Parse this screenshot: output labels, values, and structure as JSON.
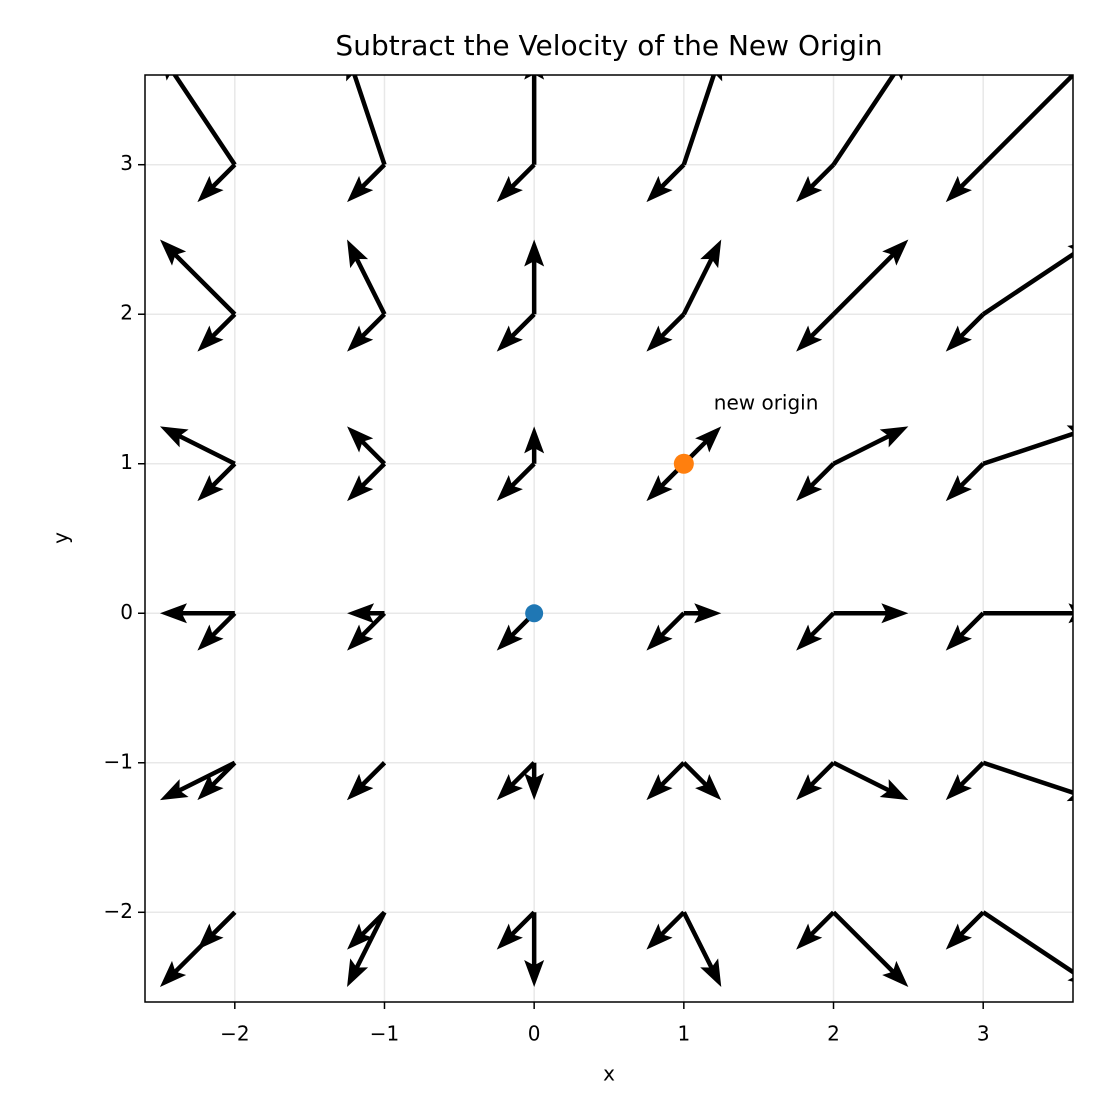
{
  "chart_data": {
    "type": "quiver",
    "title": "Subtract the Velocity of the New Origin",
    "x_label": "x",
    "y_label": "y",
    "xlim": [
      -2.6,
      3.6
    ],
    "ylim": [
      -2.6,
      3.6
    ],
    "xticks": [
      {
        "value": -2,
        "label": "−2"
      },
      {
        "value": -1,
        "label": "−1"
      },
      0,
      1,
      2,
      3
    ],
    "yticks": [
      {
        "value": -2,
        "label": "−2"
      },
      {
        "value": -1,
        "label": "−1"
      },
      0,
      1,
      2,
      3
    ],
    "grid": true,
    "color": "#000000",
    "x": [
      -2,
      -1,
      0,
      1,
      2,
      3,
      -2,
      -1,
      0,
      1,
      2,
      3,
      -2,
      -1,
      0,
      1,
      2,
      3,
      -2,
      -1,
      0,
      1,
      2,
      3,
      -2,
      -1,
      0,
      1,
      2,
      3,
      -2,
      -1,
      0,
      1,
      2,
      3
    ],
    "y": [
      -2,
      -2,
      -2,
      -2,
      -2,
      -2,
      -1,
      -1,
      -1,
      -1,
      -1,
      -1,
      0,
      0,
      0,
      0,
      0,
      0,
      1,
      1,
      1,
      1,
      1,
      1,
      2,
      2,
      2,
      2,
      2,
      2,
      3,
      3,
      3,
      3,
      3,
      3
    ],
    "u": [
      -0.5,
      -0.25,
      0,
      0.25,
      0.5,
      0.75,
      -0.5,
      -0.25,
      0,
      0.25,
      0.5,
      0.75,
      -0.5,
      -0.25,
      0,
      0.25,
      0.5,
      0.75,
      -0.5,
      -0.25,
      0,
      0.25,
      0.5,
      0.75,
      -0.5,
      -0.25,
      0,
      0.25,
      0.5,
      0.75,
      -0.5,
      -0.25,
      0,
      0.25,
      0.5,
      0.75
    ],
    "v": [
      -0.5,
      -0.5,
      -0.5,
      -0.5,
      -0.5,
      -0.5,
      -0.25,
      -0.25,
      -0.25,
      -0.25,
      -0.25,
      -0.25,
      0,
      0,
      0,
      0,
      0,
      0,
      0.25,
      0.25,
      0.25,
      0.25,
      0.25,
      0.25,
      0.5,
      0.5,
      0.5,
      0.5,
      0.5,
      0.5,
      0.75,
      0.75,
      0.75,
      0.75,
      0.75,
      0.75
    ],
    "origin_velocity": {
      "u": -0.25,
      "v": -0.25
    },
    "points": [
      {
        "x": 0,
        "y": 0,
        "color": "#1f77b4"
      },
      {
        "x": 1,
        "y": 1,
        "color": "#ff7f0e"
      }
    ],
    "annotation": {
      "text": "new origin",
      "x": 1.2,
      "y": 1.4
    }
  }
}
